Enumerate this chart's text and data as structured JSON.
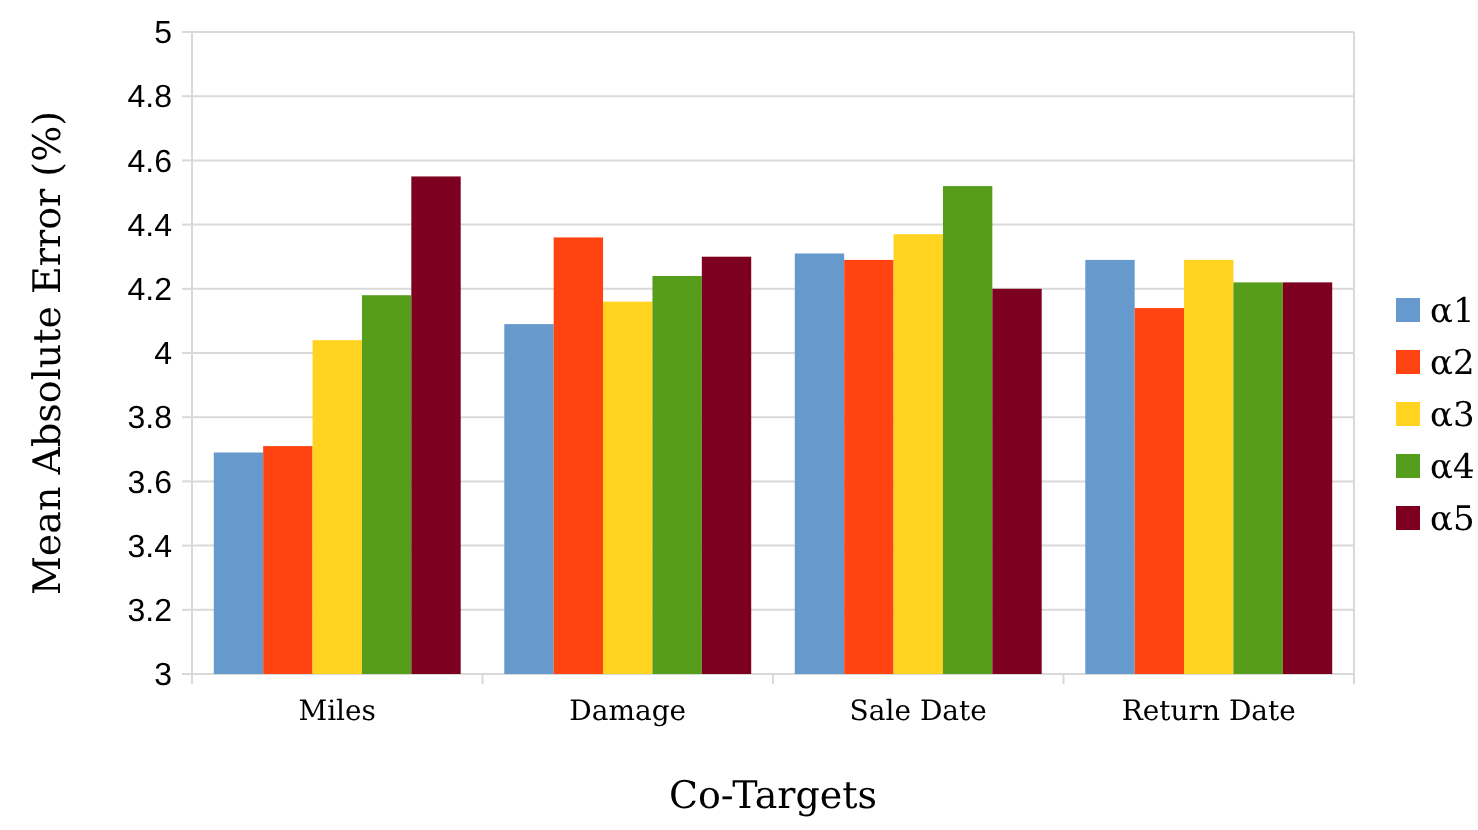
{
  "chart_data": {
    "type": "bar",
    "xlabel": "Co-Targets",
    "ylabel": "Mean Absolute Error (%)",
    "categories": [
      "Miles",
      "Damage",
      "Sale Date",
      "Return Date"
    ],
    "series": [
      {
        "name": "α1",
        "color": "#6699cc",
        "values": [
          3.69,
          4.09,
          4.31,
          4.29
        ]
      },
      {
        "name": "α2",
        "color": "#ff4411",
        "values": [
          3.71,
          4.36,
          4.29,
          4.14
        ]
      },
      {
        "name": "α3",
        "color": "#ffd320",
        "values": [
          4.04,
          4.16,
          4.37,
          4.29
        ]
      },
      {
        "name": "α4",
        "color": "#579d1c",
        "values": [
          4.18,
          4.24,
          4.52,
          4.22
        ]
      },
      {
        "name": "α5",
        "color": "#7e0021",
        "values": [
          4.55,
          4.3,
          4.2,
          4.22
        ]
      }
    ],
    "ylim": [
      3,
      5
    ],
    "yticks": [
      3,
      3.2,
      3.4,
      3.6,
      3.8,
      4,
      4.2,
      4.4,
      4.6,
      4.8,
      5
    ],
    "grid": "y",
    "legend": "right"
  }
}
